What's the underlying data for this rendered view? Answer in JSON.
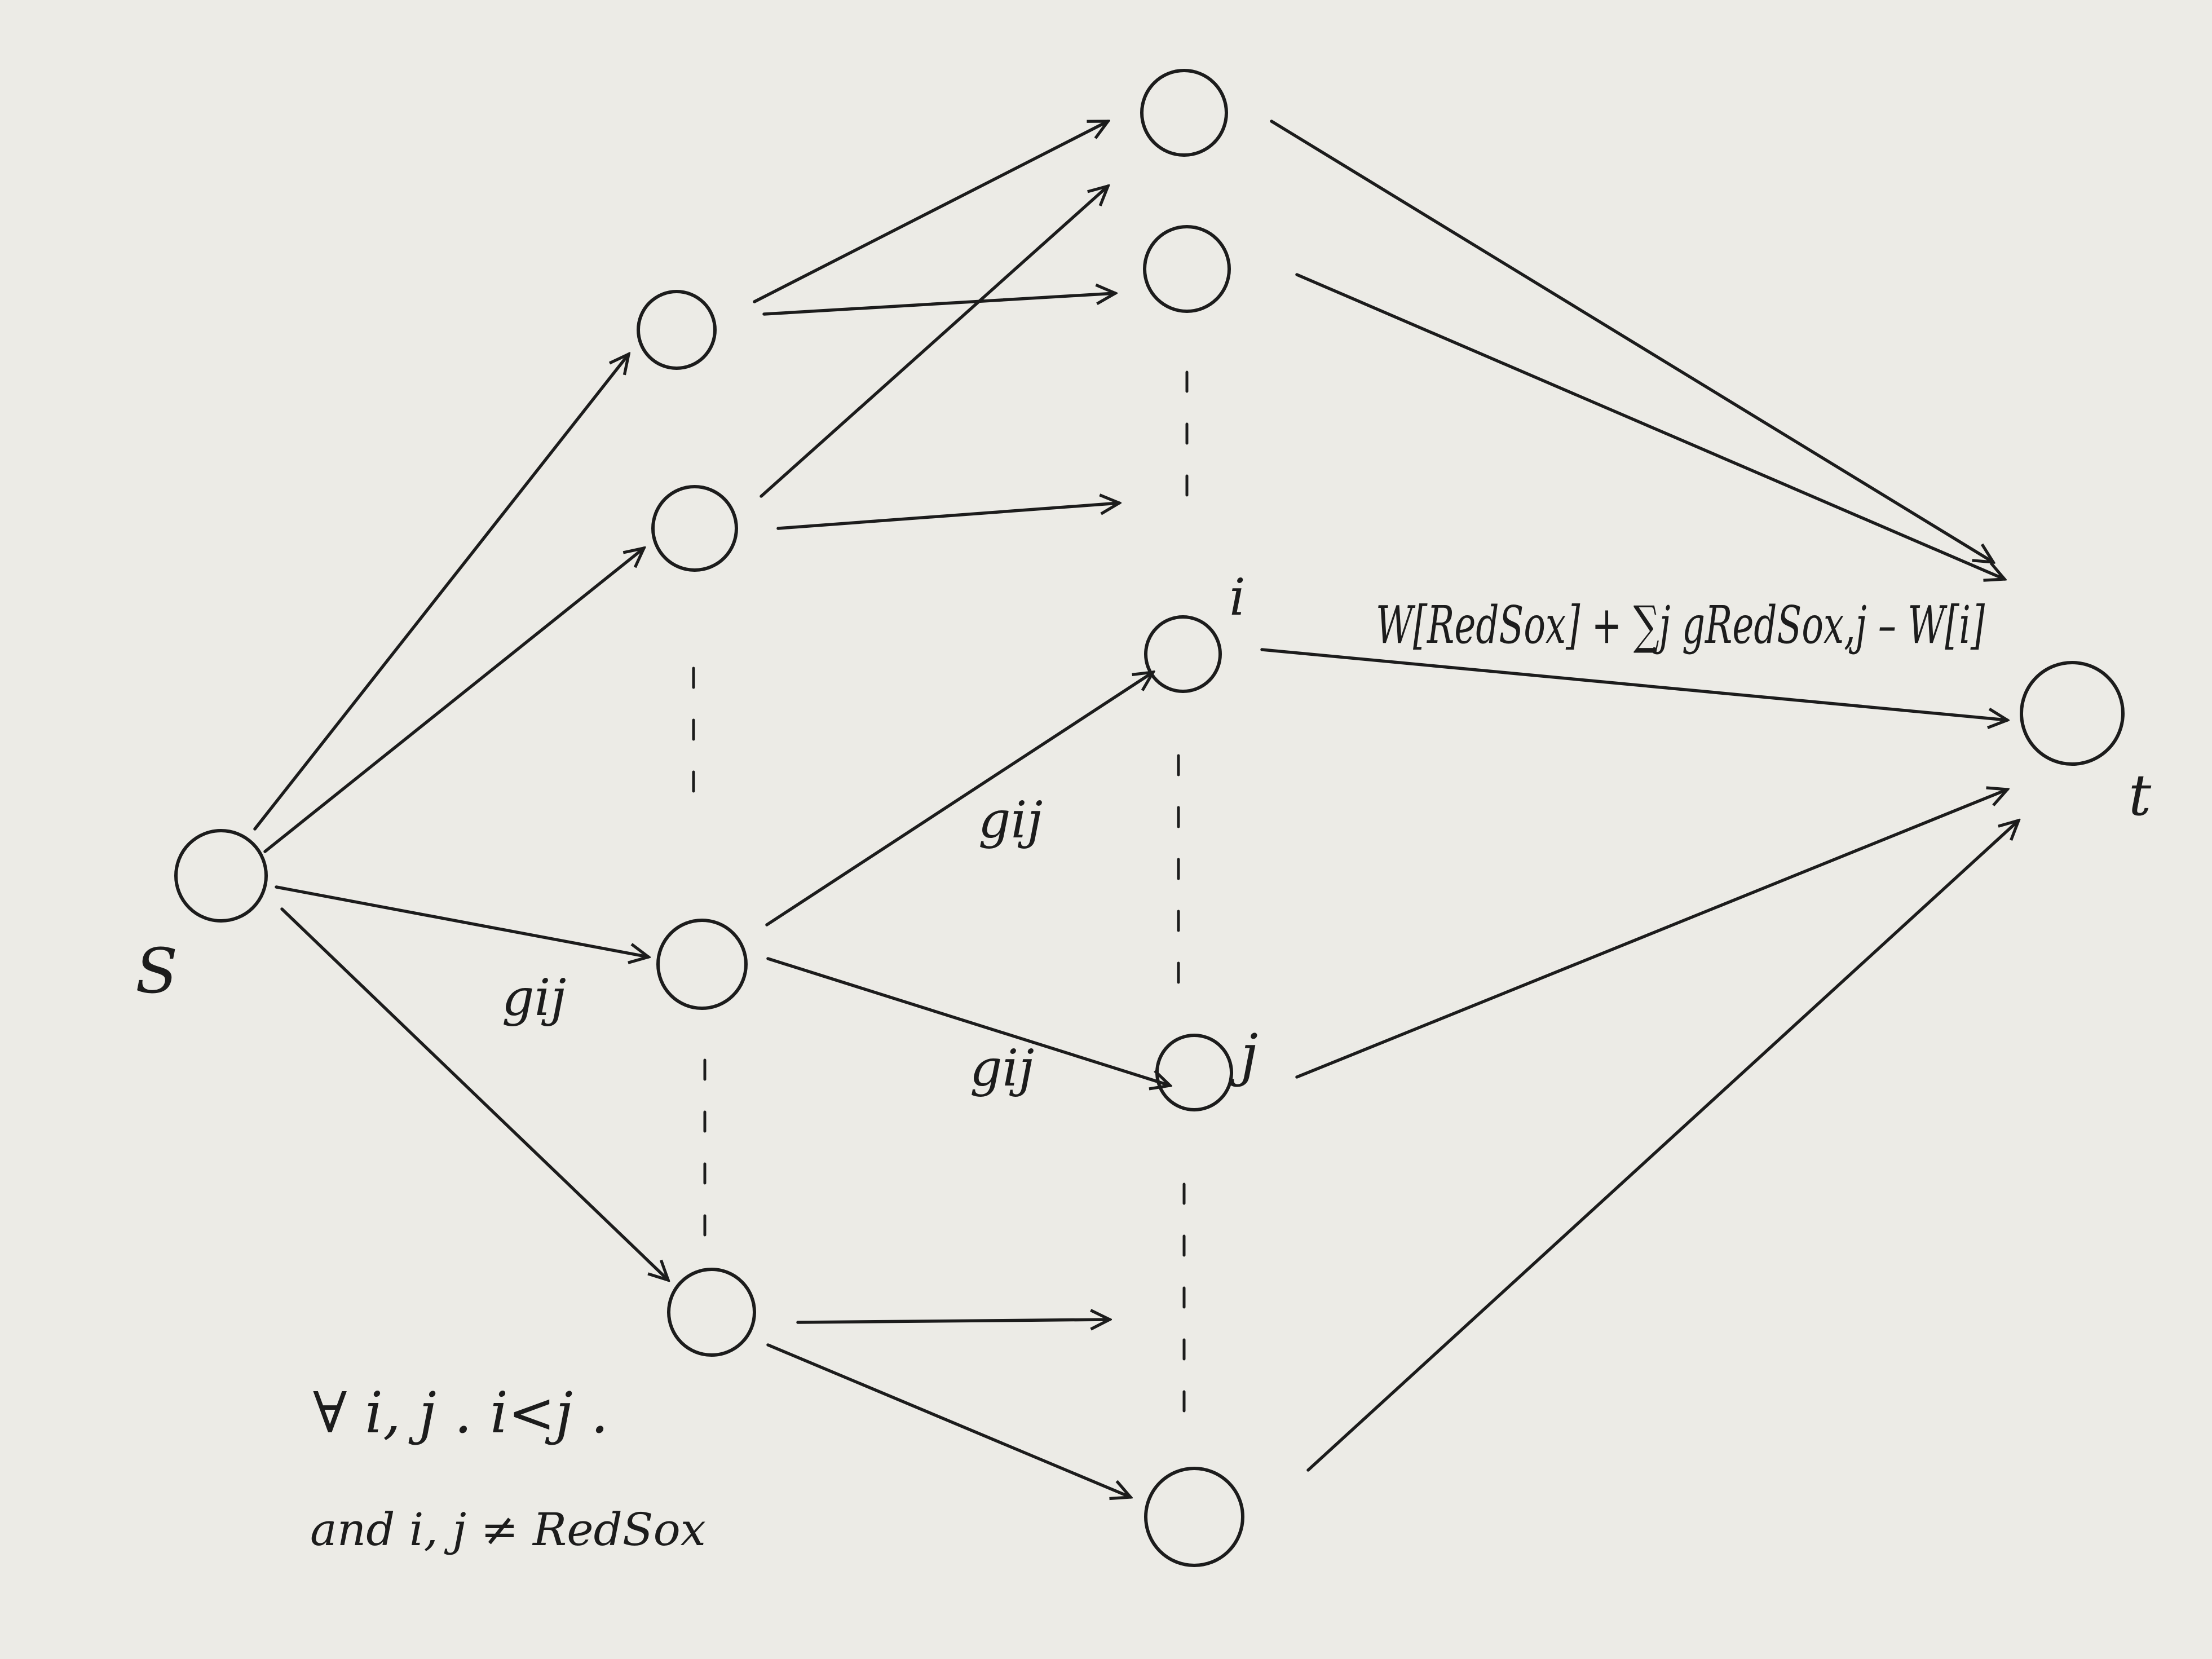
{
  "diagram": {
    "source_label": "S",
    "sink_label": "t",
    "node_i_label": "i",
    "node_j_label": "j",
    "edge_label_s_to_game": "gij",
    "edge_label_game_to_i": "gij",
    "edge_label_game_to_j": "gij",
    "sink_capacity_label": "W[RedSox] + ∑j gRedSox,j – W[i]",
    "constraint_line_1": "∀ i, j . i<j .",
    "constraint_line_2": "and i, j ≠ RedSox"
  },
  "colors": {
    "paper": "#ecebe6",
    "ink": "#1c1c1c"
  }
}
